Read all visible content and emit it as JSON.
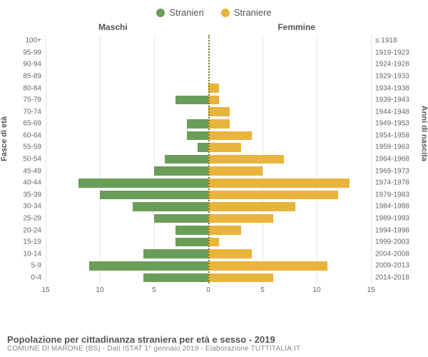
{
  "legend": {
    "male_label": "Stranieri",
    "female_label": "Straniere"
  },
  "chart": {
    "type": "population-pyramid",
    "male_title": "Maschi",
    "female_title": "Femmine",
    "left_axis_label": "Fasce di età",
    "right_axis_label": "Anni di nascita",
    "male_color": "#6a9e58",
    "female_color": "#e9b43b",
    "grid_color": "#e5e5e5",
    "center_line_color": "#7a7a2a",
    "background_color": "#ffffff",
    "xlim": 15,
    "x_ticks": [
      15,
      10,
      5,
      0,
      5,
      10,
      15
    ],
    "tick_fontsize": 10,
    "label_fontsize": 10,
    "title_fontsize": 12,
    "rows": [
      {
        "age": "100+",
        "year": "≤ 1918",
        "m": 0,
        "f": 0
      },
      {
        "age": "95-99",
        "year": "1919-1923",
        "m": 0,
        "f": 0
      },
      {
        "age": "90-94",
        "year": "1924-1928",
        "m": 0,
        "f": 0
      },
      {
        "age": "85-89",
        "year": "1929-1933",
        "m": 0,
        "f": 0
      },
      {
        "age": "80-84",
        "year": "1934-1938",
        "m": 0,
        "f": 1
      },
      {
        "age": "75-79",
        "year": "1939-1943",
        "m": 3,
        "f": 1
      },
      {
        "age": "70-74",
        "year": "1944-1948",
        "m": 0,
        "f": 2
      },
      {
        "age": "65-69",
        "year": "1949-1953",
        "m": 2,
        "f": 2
      },
      {
        "age": "60-64",
        "year": "1954-1958",
        "m": 2,
        "f": 4
      },
      {
        "age": "55-59",
        "year": "1959-1963",
        "m": 1,
        "f": 3
      },
      {
        "age": "50-54",
        "year": "1964-1968",
        "m": 4,
        "f": 7
      },
      {
        "age": "45-49",
        "year": "1969-1973",
        "m": 5,
        "f": 5
      },
      {
        "age": "40-44",
        "year": "1974-1978",
        "m": 12,
        "f": 13
      },
      {
        "age": "35-39",
        "year": "1979-1983",
        "m": 10,
        "f": 12
      },
      {
        "age": "30-34",
        "year": "1984-1988",
        "m": 7,
        "f": 8
      },
      {
        "age": "25-29",
        "year": "1989-1993",
        "m": 5,
        "f": 6
      },
      {
        "age": "20-24",
        "year": "1994-1998",
        "m": 3,
        "f": 3
      },
      {
        "age": "15-19",
        "year": "1999-2003",
        "m": 3,
        "f": 1
      },
      {
        "age": "10-14",
        "year": "2004-2008",
        "m": 6,
        "f": 4
      },
      {
        "age": "5-9",
        "year": "2009-2013",
        "m": 11,
        "f": 11
      },
      {
        "age": "0-4",
        "year": "2014-2018",
        "m": 6,
        "f": 6
      }
    ]
  },
  "footer": {
    "title": "Popolazione per cittadinanza straniera per età e sesso - 2019",
    "subtitle": "COMUNE DI MARONE (BS) - Dati ISTAT 1° gennaio 2019 - Elaborazione TUTTITALIA.IT"
  }
}
